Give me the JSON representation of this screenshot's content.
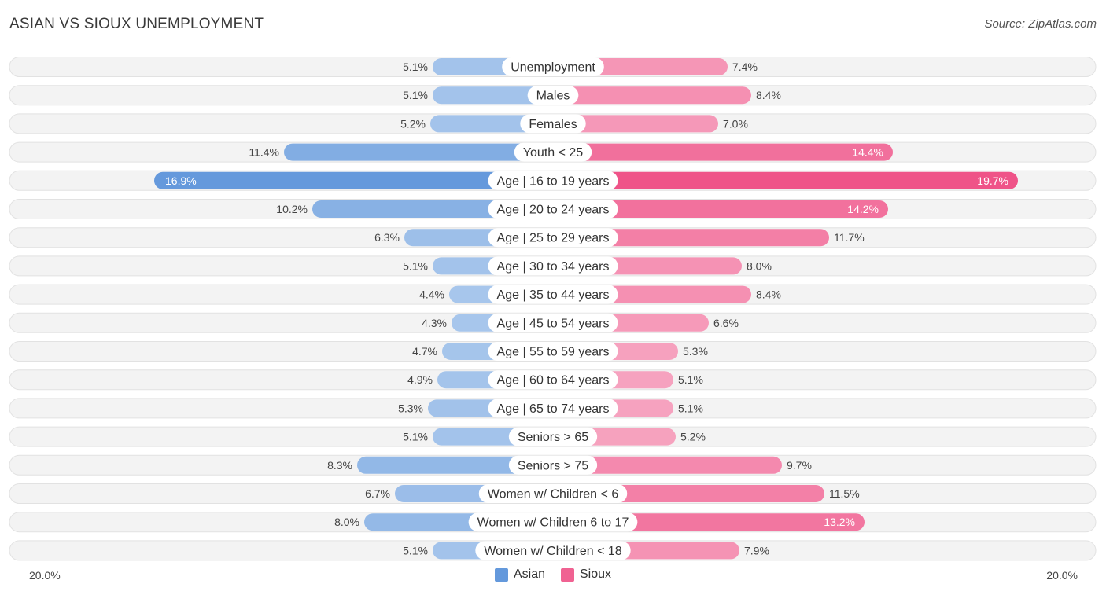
{
  "header": {
    "title": "ASIAN VS SIOUX UNEMPLOYMENT",
    "source": "Source: ZipAtlas.com"
  },
  "axis": {
    "left_label": "20.0%",
    "right_label": "20.0%"
  },
  "legend": {
    "asian_label": "Asian",
    "sioux_label": "Sioux"
  },
  "colors": {
    "asian_strong": "#6499dc",
    "asian_light": "#a9c7ec",
    "sioux_strong": "#f06292",
    "sioux_light": "#f7a8c3",
    "row_bg": "#f3f3f3",
    "row_border": "#e2e2e2"
  },
  "chart_data": {
    "type": "bar",
    "orientation": "horizontal-diverging",
    "title": "ASIAN VS SIOUX UNEMPLOYMENT",
    "xlim": [
      0,
      20
    ],
    "categories": [
      "Unemployment",
      "Males",
      "Females",
      "Youth < 25",
      "Age | 16 to 19 years",
      "Age | 20 to 24 years",
      "Age | 25 to 29 years",
      "Age | 30 to 34 years",
      "Age | 35 to 44 years",
      "Age | 45 to 54 years",
      "Age | 55 to 59 years",
      "Age | 60 to 64 years",
      "Age | 65 to 74 years",
      "Seniors > 65",
      "Seniors > 75",
      "Women w/ Children < 6",
      "Women w/ Children 6 to 17",
      "Women w/ Children < 18"
    ],
    "series": [
      {
        "name": "Asian",
        "values": [
          5.1,
          5.1,
          5.2,
          11.4,
          16.9,
          10.2,
          6.3,
          5.1,
          4.4,
          4.3,
          4.7,
          4.9,
          5.3,
          5.1,
          8.3,
          6.7,
          8.0,
          5.1
        ],
        "labels": [
          "5.1%",
          "5.1%",
          "5.2%",
          "11.4%",
          "16.9%",
          "10.2%",
          "6.3%",
          "5.1%",
          "4.4%",
          "4.3%",
          "4.7%",
          "4.9%",
          "5.3%",
          "5.1%",
          "8.3%",
          "6.7%",
          "8.0%",
          "5.1%"
        ]
      },
      {
        "name": "Sioux",
        "values": [
          7.4,
          8.4,
          7.0,
          14.4,
          19.7,
          14.2,
          11.7,
          8.0,
          8.4,
          6.6,
          5.3,
          5.1,
          5.1,
          5.2,
          9.7,
          11.5,
          13.2,
          7.9
        ],
        "labels": [
          "7.4%",
          "8.4%",
          "7.0%",
          "14.4%",
          "19.7%",
          "14.2%",
          "11.7%",
          "8.0%",
          "8.4%",
          "6.6%",
          "5.3%",
          "5.1%",
          "5.1%",
          "5.2%",
          "9.7%",
          "11.5%",
          "13.2%",
          "7.9%"
        ]
      }
    ]
  }
}
